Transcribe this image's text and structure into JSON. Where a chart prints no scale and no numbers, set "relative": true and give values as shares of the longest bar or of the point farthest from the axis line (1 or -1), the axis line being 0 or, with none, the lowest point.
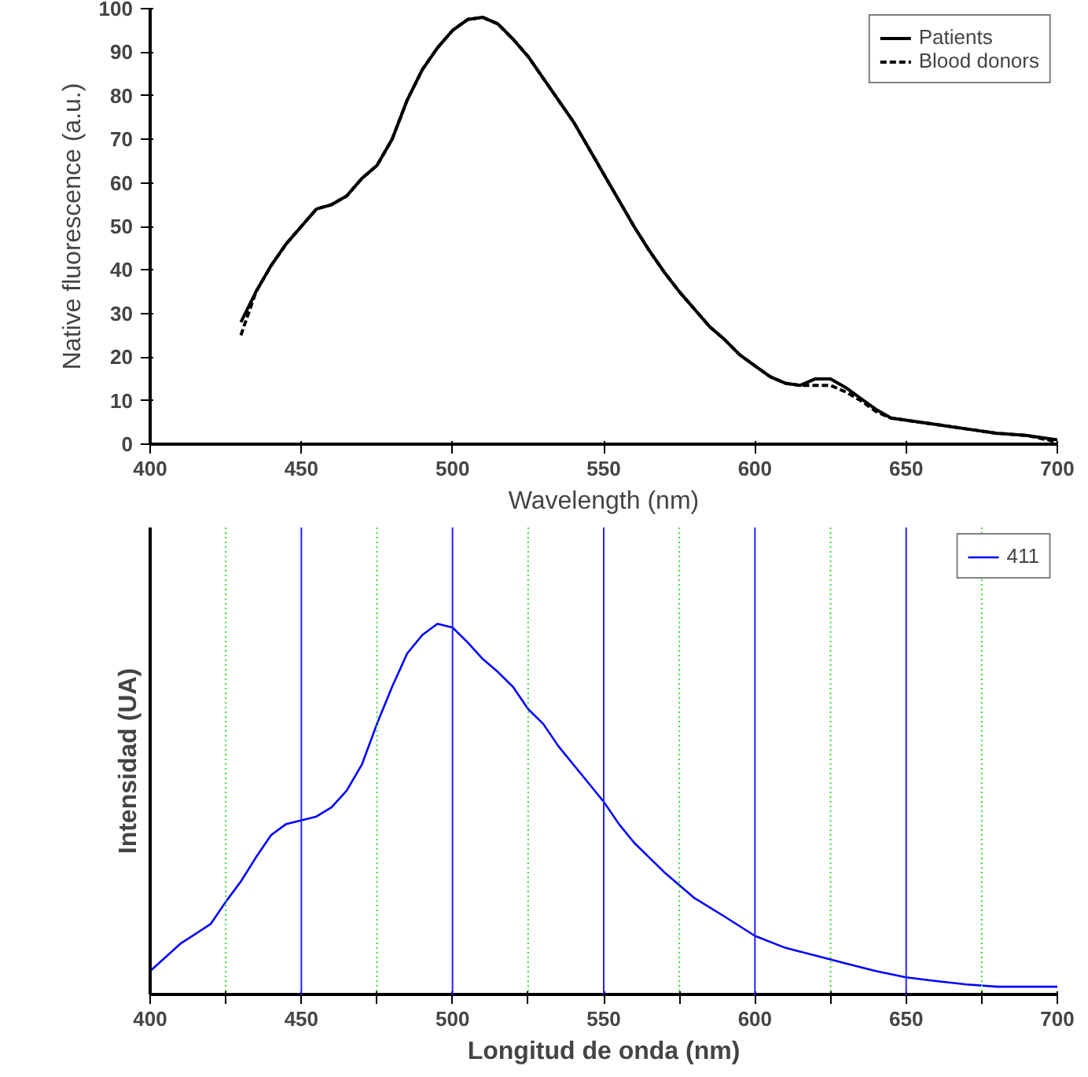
{
  "chart_data": [
    {
      "type": "line",
      "xlabel": "Wavelength (nm)",
      "ylabel": "Native fluorescence (a.u.)",
      "xlim": [
        400,
        700
      ],
      "ylim": [
        0,
        100
      ],
      "xticks": [
        400,
        450,
        500,
        550,
        600,
        650,
        700
      ],
      "yticks": [
        0,
        10,
        20,
        30,
        40,
        50,
        60,
        70,
        80,
        90,
        100
      ],
      "grid": false,
      "legend": "top right",
      "x": [
        430,
        435,
        440,
        445,
        450,
        455,
        460,
        465,
        470,
        475,
        480,
        485,
        490,
        495,
        500,
        505,
        510,
        515,
        520,
        525,
        530,
        535,
        540,
        545,
        550,
        555,
        560,
        565,
        570,
        575,
        580,
        585,
        590,
        595,
        600,
        605,
        610,
        615,
        620,
        625,
        630,
        635,
        640,
        645,
        650,
        660,
        670,
        680,
        690,
        700
      ],
      "series": [
        {
          "name": "Patients",
          "color": "#000000",
          "line_style": "solid",
          "values": [
            28,
            35,
            41,
            46,
            50,
            54,
            55,
            57,
            61,
            64,
            70,
            79,
            86,
            91,
            95,
            97.5,
            98,
            96.5,
            93,
            89,
            84,
            79,
            74,
            68,
            62,
            56,
            50,
            44.5,
            39.5,
            35,
            31,
            27,
            24,
            20.5,
            18,
            15.5,
            14,
            13.5,
            15,
            15,
            13,
            10.5,
            8,
            6,
            5.5,
            4.5,
            3.5,
            2.5,
            2,
            1
          ]
        },
        {
          "name": "Blood donors",
          "color": "#000000",
          "line_style": "dashed",
          "values": [
            25,
            35,
            41,
            46,
            50,
            54,
            55,
            57,
            61,
            64,
            70,
            79,
            86,
            91,
            95,
            97.5,
            98,
            96.5,
            93,
            89,
            84,
            79,
            74,
            68,
            62,
            56,
            50,
            44.5,
            39.5,
            35,
            31,
            27,
            24,
            20.5,
            18,
            15.5,
            14,
            13.5,
            13.5,
            13.5,
            12,
            10,
            7.5,
            6,
            5.5,
            4.5,
            3.5,
            2.5,
            2,
            0.5
          ]
        }
      ]
    },
    {
      "type": "line",
      "relative": true,
      "xlabel": "Longitud de onda (nm)",
      "ylabel": "Intensidad (UA)",
      "xlim": [
        400,
        700
      ],
      "grid": "x",
      "legend": "top right",
      "xticks": [
        400,
        {
          "value": 425,
          "label": null
        },
        450,
        {
          "value": 475,
          "label": null
        },
        500,
        {
          "value": 525,
          "label": null
        },
        550,
        {
          "value": 575,
          "label": null
        },
        600,
        {
          "value": 625,
          "label": null
        },
        650,
        {
          "value": 675,
          "label": null
        },
        700
      ],
      "x": [
        400,
        410,
        420,
        425,
        430,
        435,
        440,
        445,
        450,
        455,
        460,
        465,
        470,
        475,
        480,
        485,
        490,
        495,
        500,
        505,
        510,
        515,
        520,
        525,
        530,
        535,
        540,
        545,
        550,
        555,
        560,
        565,
        570,
        575,
        580,
        590,
        600,
        610,
        620,
        630,
        640,
        650,
        660,
        670,
        680,
        690,
        700
      ],
      "series": [
        {
          "name": "411",
          "color": "#0000ff",
          "values": [
            0.063,
            0.137,
            0.19,
            0.25,
            0.305,
            0.37,
            0.43,
            0.46,
            0.47,
            0.48,
            0.505,
            0.55,
            0.62,
            0.73,
            0.83,
            0.92,
            0.97,
            1.0,
            0.99,
            0.95,
            0.905,
            0.87,
            0.83,
            0.77,
            0.73,
            0.67,
            0.62,
            0.57,
            0.52,
            0.46,
            0.41,
            0.37,
            0.33,
            0.295,
            0.26,
            0.21,
            0.158,
            0.126,
            0.105,
            0.084,
            0.063,
            0.046,
            0.036,
            0.027,
            0.021,
            0.021,
            0.021
          ]
        }
      ]
    }
  ]
}
